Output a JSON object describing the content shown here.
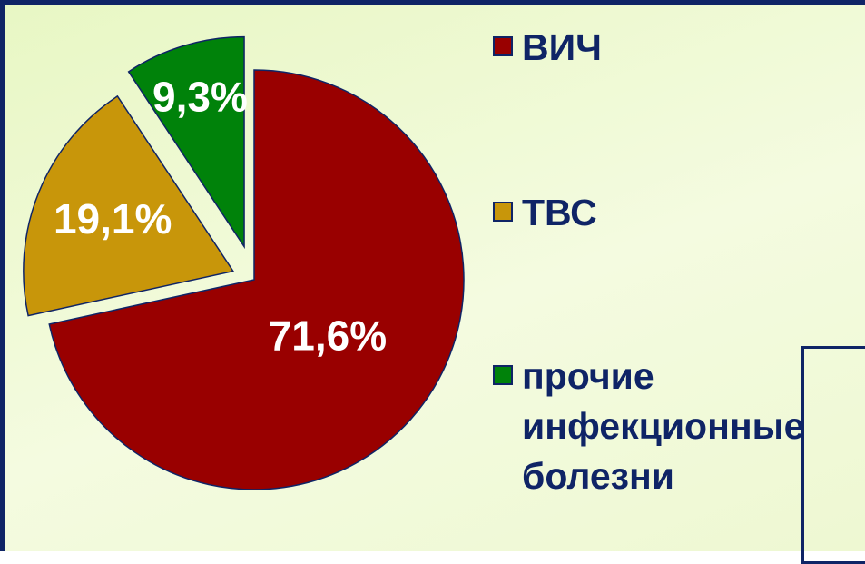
{
  "chart_data": {
    "type": "pie",
    "categories": [
      "ВИЧ",
      "ТВС",
      "прочие инфекционные болезни"
    ],
    "values": [
      71.6,
      19.1,
      9.3
    ],
    "value_labels": [
      "71,6%",
      "19,1%",
      "9,3%"
    ],
    "colors": [
      "#990000",
      "#c8960a",
      "#00820a"
    ],
    "legend": "right"
  }
}
